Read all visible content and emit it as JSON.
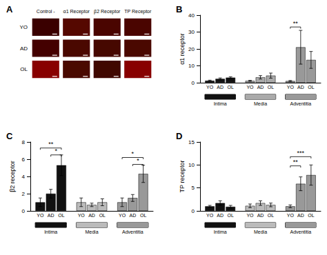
{
  "chart_data": [
    {
      "type": "tiles",
      "title": "A",
      "categories": [
        "Control -",
        "α1 Receptor",
        "β2 Receptor",
        "TP Receptor"
      ],
      "rows": [
        "YO",
        "AD",
        "OL"
      ],
      "colors": [
        [
          "#3a0000",
          "#550800",
          "#4a0500",
          "#4a0500"
        ],
        [
          "#440000",
          "#4a0800",
          "#460800",
          "#4a0800"
        ],
        [
          "#880000",
          "#4a0a00",
          "#400800",
          "#880000"
        ]
      ],
      "grid": false,
      "tick_labels": false
    },
    {
      "type": "bar",
      "title": "B",
      "ylabel": "α1 receptor",
      "categories": [
        "Intima",
        "Media",
        "Adventitia"
      ],
      "colors": [
        "#111111",
        "#aaaaaa",
        "#999999"
      ],
      "series": [
        {
          "name": "YO",
          "values": [
            1.2,
            1.1,
            1.0
          ],
          "errors": [
            0.3,
            0.3,
            0.3
          ]
        },
        {
          "name": "AD",
          "values": [
            2.3,
            3.2,
            21.0
          ],
          "errors": [
            0.5,
            1.0,
            10.0
          ]
        },
        {
          "name": "OL",
          "values": [
            3.0,
            4.2,
            13.5
          ],
          "errors": [
            0.5,
            1.5,
            5.0
          ]
        }
      ],
      "annotations": [
        {
          "from": [
            "Adventitia",
            "YO"
          ],
          "to": [
            "Adventitia",
            "AD"
          ],
          "label": "**",
          "y": 33
        }
      ],
      "ylim": [
        0,
        40
      ],
      "yticks": [
        0,
        10,
        20,
        30,
        40
      ],
      "grid": false
    },
    {
      "type": "bar",
      "title": "C",
      "ylabel": "β2 receptor",
      "categories": [
        "Intima",
        "Media",
        "Adventitia"
      ],
      "colors": [
        "#111111",
        "#bbbbbb",
        "#999999"
      ],
      "series": [
        {
          "name": "YO",
          "values": [
            1.0,
            1.0,
            1.0
          ],
          "errors": [
            0.5,
            0.5,
            0.5
          ]
        },
        {
          "name": "AD",
          "values": [
            2.0,
            0.7,
            1.5
          ],
          "errors": [
            0.5,
            0.2,
            0.4
          ]
        },
        {
          "name": "OL",
          "values": [
            5.3,
            1.0,
            4.3
          ],
          "errors": [
            1.2,
            0.4,
            1.0
          ]
        }
      ],
      "annotations": [
        {
          "from": [
            "Intima",
            "YO"
          ],
          "to": [
            "Intima",
            "OL"
          ],
          "label": "**",
          "y": 7.3
        },
        {
          "from": [
            "Intima",
            "AD"
          ],
          "to": [
            "Intima",
            "OL"
          ],
          "label": "*",
          "y": 6.5
        },
        {
          "from": [
            "Adventitia",
            "YO"
          ],
          "to": [
            "Adventitia",
            "OL"
          ],
          "label": "*",
          "y": 6.2
        },
        {
          "from": [
            "Adventitia",
            "AD"
          ],
          "to": [
            "Adventitia",
            "OL"
          ],
          "label": "*",
          "y": 5.4
        }
      ],
      "ylim": [
        0,
        8
      ],
      "yticks": [
        0,
        2,
        4,
        6,
        8
      ],
      "grid": false
    },
    {
      "type": "bar",
      "title": "D",
      "ylabel": "TP receptor",
      "categories": [
        "Intima",
        "Media",
        "Adventitia"
      ],
      "colors": [
        "#111111",
        "#bbbbbb",
        "#999999"
      ],
      "series": [
        {
          "name": "YO",
          "values": [
            1.0,
            1.1,
            1.0
          ],
          "errors": [
            0.2,
            0.4,
            0.3
          ]
        },
        {
          "name": "AD",
          "values": [
            1.7,
            1.7,
            5.9
          ],
          "errors": [
            0.5,
            0.5,
            1.5
          ]
        },
        {
          "name": "OL",
          "values": [
            0.9,
            1.3,
            7.8
          ],
          "errors": [
            0.3,
            0.4,
            2.2
          ]
        }
      ],
      "annotations": [
        {
          "from": [
            "Adventitia",
            "YO"
          ],
          "to": [
            "Adventitia",
            "AD"
          ],
          "label": "**",
          "y": 9.8
        },
        {
          "from": [
            "Adventitia",
            "YO"
          ],
          "to": [
            "Adventitia",
            "OL"
          ],
          "label": "***",
          "y": 11.8
        }
      ],
      "ylim": [
        0,
        15
      ],
      "yticks": [
        0,
        5,
        10,
        15
      ],
      "grid": false
    }
  ]
}
